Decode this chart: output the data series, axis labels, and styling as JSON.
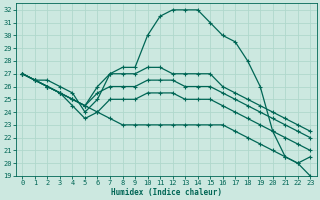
{
  "xlabel": "Humidex (Indice chaleur)",
  "xlim": [
    -0.5,
    23.5
  ],
  "ylim": [
    19,
    32.5
  ],
  "yticks": [
    19,
    20,
    21,
    22,
    23,
    24,
    25,
    26,
    27,
    28,
    29,
    30,
    31,
    32
  ],
  "xticks": [
    0,
    1,
    2,
    3,
    4,
    5,
    6,
    7,
    8,
    9,
    10,
    11,
    12,
    13,
    14,
    15,
    16,
    17,
    18,
    19,
    20,
    21,
    22,
    23
  ],
  "background_color": "#cce8e0",
  "grid_color": "#b0d8cc",
  "line_color": "#006655",
  "hours": [
    0,
    1,
    2,
    3,
    4,
    5,
    6,
    7,
    8,
    9,
    10,
    11,
    12,
    13,
    14,
    15,
    16,
    17,
    18,
    19,
    20,
    21,
    22,
    23
  ],
  "max_line": [
    27,
    26.5,
    26.5,
    26,
    25.5,
    24,
    25,
    27,
    27.5,
    27.5,
    30,
    31.5,
    32,
    32,
    32,
    31,
    30,
    29.5,
    28,
    26,
    22.5,
    20.5,
    20,
    20.5
  ],
  "upper_mid": [
    27,
    26.5,
    26,
    25.5,
    25,
    24.5,
    26,
    27,
    27,
    27,
    27.5,
    27.5,
    27,
    27,
    27,
    27,
    26,
    25.5,
    25,
    24.5,
    24,
    23.5,
    23,
    22.5
  ],
  "lower_mid": [
    27,
    26.5,
    26,
    25.5,
    25,
    24.5,
    25.5,
    26,
    26,
    26,
    26.5,
    26.5,
    26.5,
    26,
    26,
    26,
    25.5,
    25,
    24.5,
    24,
    23.5,
    23,
    22.5,
    22
  ],
  "min_line": [
    27,
    26.5,
    26,
    25.5,
    24.5,
    23.5,
    24,
    25,
    25,
    25,
    25.5,
    25.5,
    25.5,
    25,
    25,
    25,
    24.5,
    24,
    23.5,
    23,
    22.5,
    22,
    21.5,
    21
  ],
  "diag_line": [
    27,
    26.5,
    26,
    25.5,
    25,
    24.5,
    24,
    23.5,
    23,
    23,
    23,
    23,
    23,
    23,
    23,
    23,
    23,
    22.5,
    22,
    21.5,
    21,
    20.5,
    20,
    19
  ]
}
